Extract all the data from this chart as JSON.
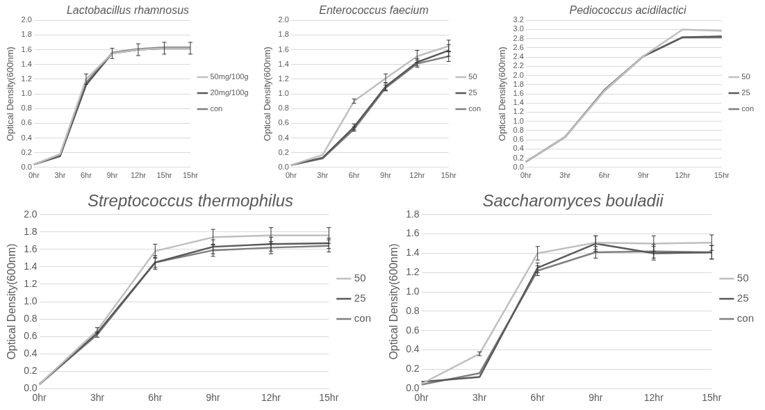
{
  "chart_data": [
    {
      "type": "line",
      "title": "Lactobacillus rhamnosus",
      "ylabel": "Optical Density(600nm)",
      "categories": [
        "0hr",
        "3hr",
        "6hr",
        "9hr",
        "12hr",
        "15hr",
        "15hr"
      ],
      "ylim": [
        0,
        2
      ],
      "yticks": [
        {
          "value": 0,
          "label": "0.0"
        },
        {
          "value": 0.2,
          "label": "0.2"
        },
        {
          "value": 0.4,
          "label": "0.4"
        },
        {
          "value": 0.6,
          "label": "0.6"
        },
        {
          "value": 0.8,
          "label": "0.8"
        },
        {
          "value": 1,
          "label": "1.0"
        },
        {
          "value": 1.2,
          "label": "1.2"
        },
        {
          "value": 1.4,
          "label": "1.4"
        },
        {
          "value": 1.6,
          "label": "1.6"
        },
        {
          "value": 1.8,
          "label": "1.8"
        },
        {
          "value": 2,
          "label": "2.0"
        }
      ],
      "grid": "y",
      "legend": "right",
      "marker": "none",
      "series": [
        {
          "name": "50mg/100g",
          "color": "#bfbfbf",
          "values": [
            0.04,
            0.18,
            1.2,
            1.55,
            1.6,
            1.62,
            1.62
          ],
          "errors": [
            null,
            null,
            0.07,
            0.07,
            0.08,
            0.08,
            0.08
          ]
        },
        {
          "name": "20mg/100g",
          "color": "#595959",
          "values": [
            0.04,
            0.15,
            1.12,
            1.55,
            1.6,
            1.62,
            1.62
          ]
        },
        {
          "name": "con",
          "color": "#7f7f7f",
          "values": [
            0.04,
            0.16,
            1.15,
            1.56,
            1.61,
            1.63,
            1.63
          ]
        }
      ]
    },
    {
      "type": "line",
      "title": "Enterococcus faecium",
      "ylabel": "Optical Density(600nm)",
      "categories": [
        "0hr",
        "3hr",
        "6hr",
        "9hr",
        "12hr",
        "15hr"
      ],
      "ylim": [
        0,
        2
      ],
      "yticks": [
        {
          "value": 0,
          "label": "0.0"
        },
        {
          "value": 0.2,
          "label": "0.2"
        },
        {
          "value": 0.4,
          "label": "0.4"
        },
        {
          "value": 0.6,
          "label": "0.6"
        },
        {
          "value": 0.8,
          "label": "0.8"
        },
        {
          "value": 1,
          "label": "1.0"
        },
        {
          "value": 1.2,
          "label": "1.2"
        },
        {
          "value": 1.4,
          "label": "1.4"
        },
        {
          "value": 1.6,
          "label": "1.6"
        },
        {
          "value": 1.8,
          "label": "1.8"
        },
        {
          "value": 2,
          "label": "2.0"
        }
      ],
      "grid": "y",
      "legend": "right",
      "marker": "none",
      "series": [
        {
          "name": "50",
          "color": "#bfbfbf",
          "values": [
            0.03,
            0.17,
            0.9,
            1.21,
            1.51,
            1.65
          ],
          "errors": [
            null,
            null,
            0.03,
            0.06,
            0.08,
            0.08
          ]
        },
        {
          "name": "25",
          "color": "#595959",
          "values": [
            0.03,
            0.13,
            0.55,
            1.1,
            1.43,
            1.59
          ],
          "errors": [
            null,
            null,
            0.04,
            0.05,
            0.05,
            0.08
          ]
        },
        {
          "name": "con",
          "color": "#7f7f7f",
          "values": [
            0.03,
            0.12,
            0.52,
            1.08,
            1.41,
            1.51
          ],
          "errors": [
            null,
            null,
            0.03,
            0.04,
            0.05,
            0.07
          ]
        }
      ]
    },
    {
      "type": "line",
      "title": "Pediococcus acidilactici",
      "ylabel": "Optical Density(600nm)",
      "categories": [
        "0hr",
        "3hr",
        "6hr",
        "9hr",
        "12hr",
        "15hr"
      ],
      "ylim": [
        0,
        3.2
      ],
      "yticks": [
        {
          "value": 0,
          "label": "0.0"
        },
        {
          "value": 0.2,
          "label": "0.2"
        },
        {
          "value": 0.4,
          "label": "0.4"
        },
        {
          "value": 0.6,
          "label": "0.6"
        },
        {
          "value": 0.8,
          "label": "0.8"
        },
        {
          "value": 1,
          "label": "1.0"
        },
        {
          "value": 1.2,
          "label": "1.2"
        },
        {
          "value": 1.4,
          "label": "1.4"
        },
        {
          "value": 1.6,
          "label": "1.6"
        },
        {
          "value": 1.8,
          "label": "1.8"
        },
        {
          "value": 2,
          "label": "2.0"
        },
        {
          "value": 2.2,
          "label": "2.2"
        },
        {
          "value": 2.4,
          "label": "2.4"
        },
        {
          "value": 2.6,
          "label": "2.6"
        },
        {
          "value": 2.8,
          "label": "2.8"
        },
        {
          "value": 3,
          "label": "3.0"
        },
        {
          "value": 3.2,
          "label": "3.2"
        }
      ],
      "grid": "y",
      "legend": "right",
      "marker": "none",
      "series": [
        {
          "name": "50",
          "color": "#bfbfbf",
          "values": [
            0.12,
            0.66,
            1.66,
            2.42,
            3.0,
            2.97
          ]
        },
        {
          "name": "25",
          "color": "#595959",
          "values": [
            0.12,
            0.66,
            1.68,
            2.42,
            2.83,
            2.85
          ]
        },
        {
          "name": "con",
          "color": "#7f7f7f",
          "values": [
            0.12,
            0.66,
            1.66,
            2.42,
            2.83,
            2.83
          ]
        }
      ]
    },
    {
      "type": "line",
      "title": "Streptococcus thermophilus",
      "ylabel": "Optical Density(600nm)",
      "categories": [
        "0hr",
        "3hr",
        "6hr",
        "9hr",
        "12hr",
        "15hr"
      ],
      "ylim": [
        0,
        2
      ],
      "yticks": [
        {
          "value": 0,
          "label": "0.0"
        },
        {
          "value": 0.2,
          "label": "0.2"
        },
        {
          "value": 0.4,
          "label": "0.4"
        },
        {
          "value": 0.6,
          "label": "0.6"
        },
        {
          "value": 0.8,
          "label": "0.8"
        },
        {
          "value": 1,
          "label": "1.0"
        },
        {
          "value": 1.2,
          "label": "1.2"
        },
        {
          "value": 1.4,
          "label": "1.4"
        },
        {
          "value": 1.6,
          "label": "1.6"
        },
        {
          "value": 1.8,
          "label": "1.8"
        },
        {
          "value": 2,
          "label": "2.0"
        }
      ],
      "grid": "y",
      "legend": "right",
      "marker": "none",
      "series": [
        {
          "name": "50",
          "color": "#bfbfbf",
          "values": [
            0.05,
            0.67,
            1.58,
            1.74,
            1.76,
            1.76
          ],
          "errors": [
            null,
            0.03,
            0.08,
            0.09,
            0.09,
            0.09
          ]
        },
        {
          "name": "25",
          "color": "#595959",
          "values": [
            0.05,
            0.64,
            1.45,
            1.63,
            1.66,
            1.67
          ],
          "errors": [
            null,
            null,
            0.08,
            0.08,
            0.08,
            0.06
          ]
        },
        {
          "name": "con",
          "color": "#7f7f7f",
          "values": [
            0.05,
            0.62,
            1.45,
            1.59,
            1.62,
            1.64
          ],
          "errors": [
            null,
            0.03,
            0.06,
            0.07,
            0.07,
            0.07
          ]
        }
      ]
    },
    {
      "type": "line",
      "title": "Saccharomyces bouladii",
      "ylabel": "Optical Density(600nm)",
      "categories": [
        "0hr",
        "3hr",
        "6hr",
        "9hr",
        "12hr",
        "15hr"
      ],
      "ylim": [
        0,
        1.8
      ],
      "yticks": [
        {
          "value": 0,
          "label": "0.0"
        },
        {
          "value": 0.2,
          "label": "0.2"
        },
        {
          "value": 0.4,
          "label": "0.4"
        },
        {
          "value": 0.6,
          "label": "0.6"
        },
        {
          "value": 0.8,
          "label": "0.8"
        },
        {
          "value": 1,
          "label": "1.0"
        },
        {
          "value": 1.2,
          "label": "1.2"
        },
        {
          "value": 1.4,
          "label": "1.4"
        },
        {
          "value": 1.6,
          "label": "1.6"
        },
        {
          "value": 1.8,
          "label": "1.8"
        }
      ],
      "grid": "y",
      "legend": "right",
      "marker": "none",
      "series": [
        {
          "name": "50",
          "color": "#bfbfbf",
          "values": [
            0.05,
            0.36,
            1.4,
            1.51,
            1.5,
            1.51
          ],
          "errors": [
            null,
            0.02,
            0.07,
            0.07,
            0.08,
            0.08
          ]
        },
        {
          "name": "25",
          "color": "#595959",
          "values": [
            0.07,
            0.12,
            1.25,
            1.5,
            1.4,
            1.41
          ],
          "errors": [
            null,
            null,
            0.05,
            0.08,
            0.07,
            0.07
          ]
        },
        {
          "name": "con",
          "color": "#7f7f7f",
          "values": [
            0.04,
            0.16,
            1.22,
            1.41,
            1.42,
            1.41
          ],
          "errors": [
            null,
            null,
            0.05,
            0.06,
            0.07,
            0.07
          ]
        }
      ]
    }
  ]
}
